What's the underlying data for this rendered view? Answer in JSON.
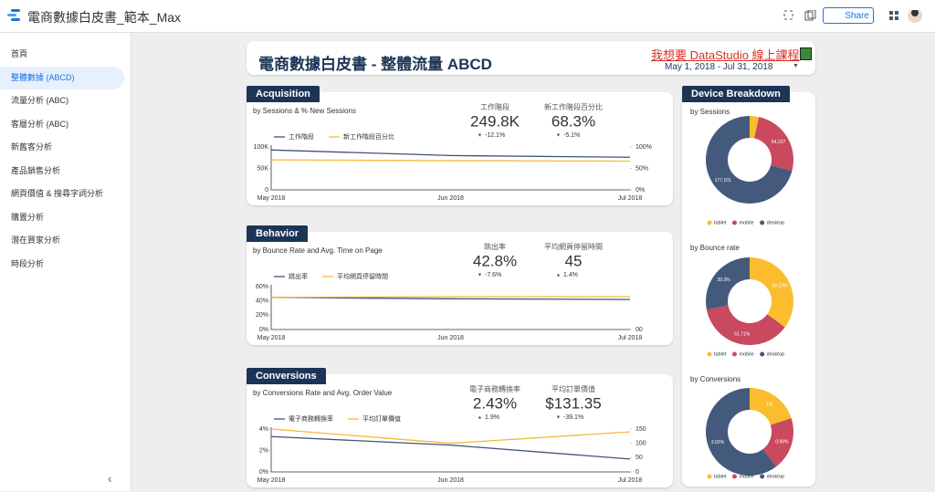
{
  "app": {
    "title": "電商數據白皮書_範本_Max",
    "share": "Share"
  },
  "sidebar": {
    "items": [
      "首頁",
      "整體數據 (ABCD)",
      "流量分析 (ABC)",
      "客層分析 (ABC)",
      "新舊客分析",
      "產品銷售分析",
      "網頁價值 & 搜尋字詞分析",
      "購置分析",
      "潛在買家分析",
      "時段分析"
    ],
    "active": 1
  },
  "header": {
    "title": "電商數據白皮書 - 整體流量 ABCD",
    "link": "我想要 DataStudio 線上課程",
    "date_range": "May 1, 2018 - Jul 31, 2018"
  },
  "sections": [
    {
      "name": "Acquisition",
      "kpis": [
        {
          "label": "工作階段",
          "value": "249.8K",
          "delta": "-12.1%"
        },
        {
          "label": "新工作階段百分比",
          "value": "68.3%",
          "delta": "-5.1%"
        }
      ]
    },
    {
      "name": "Behavior",
      "kpis": [
        {
          "label": "跳出率",
          "value": "42.8%",
          "delta": "-7.6%"
        },
        {
          "label": "平均網頁停留時間",
          "value": "45",
          "delta": "1.4%"
        }
      ]
    },
    {
      "name": "Conversions",
      "kpis": [
        {
          "label": "電子商務轉換率",
          "value": "2.43%",
          "delta": "1.9%"
        },
        {
          "label": "平均訂單價值",
          "value": "$131.35",
          "delta": "-39.1%"
        }
      ]
    }
  ],
  "device_title": "Device Breakdown",
  "chart_data": [
    {
      "type": "line",
      "title": "by Sessions & % New Sessions",
      "x": [
        "May 2018",
        "Jun 2018",
        "Jul 2018"
      ],
      "series": [
        {
          "name": "工作階段",
          "color": "#3f5378",
          "values": [
            93000,
            80000,
            76000
          ]
        },
        {
          "name": "新工作階段百分比",
          "color": "#f6b93b",
          "values": [
            70,
            68,
            67
          ],
          "axis": "y2"
        }
      ],
      "ylim": [
        0,
        100000
      ],
      "yticks": [
        0,
        {
          "value": 50000,
          "label": "50K"
        },
        {
          "value": 100000,
          "label": "100K"
        }
      ],
      "y2lim": [
        0,
        100
      ],
      "y2ticks": [
        {
          "value": 0,
          "label": "0%"
        },
        {
          "value": 50,
          "label": "50%"
        },
        {
          "value": 100,
          "label": "100%"
        }
      ]
    },
    {
      "type": "line",
      "title": "by Bounce Rate and Avg. Time on Page",
      "x": [
        "May 2018",
        "Jun 2018",
        "Jul 2018"
      ],
      "series": [
        {
          "name": "跳出率",
          "color": "#3f5378",
          "values": [
            45,
            43,
            42
          ]
        },
        {
          "name": "平均網頁停留時間",
          "color": "#f6b93b",
          "values": [
            45,
            46,
            46
          ],
          "axis": "y2"
        }
      ],
      "ylim": [
        0,
        60
      ],
      "yticks": [
        {
          "value": 0,
          "label": "0%"
        },
        {
          "value": 20,
          "label": "20%"
        },
        {
          "value": 40,
          "label": "40%"
        },
        {
          "value": 60,
          "label": "60%"
        }
      ],
      "y2lim": [
        0,
        60
      ],
      "y2ticks": [
        {
          "value": 0,
          "label": "00"
        }
      ]
    },
    {
      "type": "line",
      "title": "by Conversions Rate and Avg. Order Value",
      "x": [
        "May 2018",
        "Jun 2018",
        "Jul 2018"
      ],
      "series": [
        {
          "name": "電子商務轉換率",
          "color": "#3f5378",
          "values": [
            3.3,
            2.5,
            1.2
          ]
        },
        {
          "name": "平均訂單價值",
          "color": "#f6b93b",
          "values": [
            150,
            100,
            140
          ],
          "axis": "y2"
        }
      ],
      "ylim": [
        0,
        4
      ],
      "yticks": [
        {
          "value": 0,
          "label": "0%"
        },
        {
          "value": 2,
          "label": "2%"
        },
        {
          "value": 4,
          "label": "4%"
        }
      ],
      "y2lim": [
        0,
        150
      ],
      "y2ticks": [
        0,
        50,
        100,
        150
      ]
    },
    {
      "type": "pie",
      "title": "by Sessions",
      "categories": [
        "tablet",
        "mobile",
        "desktop"
      ],
      "colors": [
        "#fbbd2e",
        "#c9495f",
        "#445a7d"
      ],
      "values": [
        8472,
        64227,
        177101
      ],
      "value_labels": [
        null,
        "64,227",
        "177,101"
      ]
    },
    {
      "type": "pie",
      "title": "by Bounce rate",
      "categories": [
        "tablet",
        "mobile",
        "desktop"
      ],
      "colors": [
        "#fbbd2e",
        "#c9495f",
        "#445a7d"
      ],
      "values": [
        49.23,
        51.71,
        39.3
      ],
      "value_labels": [
        "49.23%",
        "51.71%",
        "39.3%"
      ]
    },
    {
      "type": "pie",
      "title": "by Conversions",
      "categories": [
        "tablet",
        "mobile",
        "desktop"
      ],
      "colors": [
        "#fbbd2e",
        "#c9495f",
        "#445a7d"
      ],
      "values": [
        1,
        0.98,
        3.02
      ],
      "value_labels": [
        "1%",
        "0.98%",
        "3.02%"
      ]
    }
  ]
}
